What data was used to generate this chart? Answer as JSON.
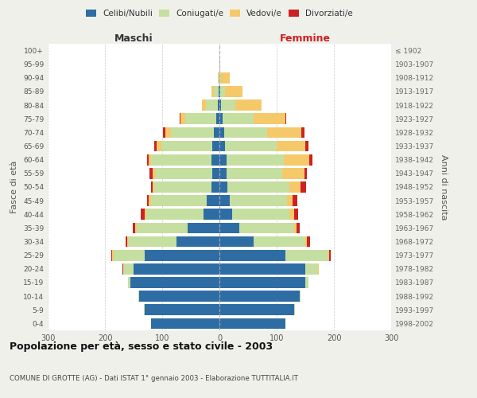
{
  "age_groups": [
    "0-4",
    "5-9",
    "10-14",
    "15-19",
    "20-24",
    "25-29",
    "30-34",
    "35-39",
    "40-44",
    "45-49",
    "50-54",
    "55-59",
    "60-64",
    "65-69",
    "70-74",
    "75-79",
    "80-84",
    "85-89",
    "90-94",
    "95-99",
    "100+"
  ],
  "birth_years": [
    "1998-2002",
    "1993-1997",
    "1988-1992",
    "1983-1987",
    "1978-1982",
    "1973-1977",
    "1968-1972",
    "1963-1967",
    "1958-1962",
    "1953-1957",
    "1948-1952",
    "1943-1947",
    "1938-1942",
    "1933-1937",
    "1928-1932",
    "1923-1927",
    "1918-1922",
    "1913-1917",
    "1908-1912",
    "1903-1907",
    "≤ 1902"
  ],
  "males": {
    "celibi": [
      120,
      130,
      140,
      155,
      150,
      130,
      75,
      55,
      28,
      22,
      14,
      12,
      14,
      12,
      10,
      5,
      3,
      2,
      0,
      0,
      0
    ],
    "coniugati": [
      0,
      2,
      2,
      5,
      18,
      55,
      85,
      90,
      100,
      98,
      100,
      100,
      105,
      90,
      75,
      55,
      20,
      8,
      2,
      0,
      0
    ],
    "vedovi": [
      0,
      0,
      0,
      0,
      0,
      2,
      1,
      2,
      2,
      3,
      3,
      5,
      5,
      8,
      10,
      8,
      8,
      4,
      1,
      0,
      0
    ],
    "divorziati": [
      0,
      0,
      0,
      0,
      1,
      2,
      3,
      5,
      8,
      3,
      3,
      5,
      3,
      4,
      4,
      1,
      0,
      0,
      0,
      0,
      0
    ]
  },
  "females": {
    "nubili": [
      115,
      130,
      140,
      150,
      150,
      115,
      60,
      35,
      22,
      18,
      14,
      12,
      12,
      10,
      8,
      5,
      3,
      2,
      0,
      0,
      0
    ],
    "coniugate": [
      0,
      2,
      2,
      5,
      22,
      75,
      90,
      95,
      100,
      100,
      108,
      98,
      100,
      90,
      75,
      55,
      25,
      8,
      3,
      0,
      0
    ],
    "vedove": [
      0,
      0,
      0,
      0,
      1,
      2,
      3,
      5,
      8,
      10,
      20,
      38,
      45,
      50,
      60,
      55,
      45,
      30,
      15,
      2,
      0
    ],
    "divorziate": [
      0,
      0,
      0,
      0,
      1,
      3,
      5,
      5,
      8,
      8,
      10,
      5,
      5,
      5,
      5,
      2,
      1,
      0,
      0,
      0,
      0
    ]
  },
  "colors": {
    "celibi": "#2E6DA4",
    "coniugati": "#C5DFA0",
    "vedovi": "#F5C96A",
    "divorziati": "#CC2222"
  },
  "xlim": 300,
  "title": "Popolazione per età, sesso e stato civile - 2003",
  "subtitle": "COMUNE DI GROTTE (AG) - Dati ISTAT 1° gennaio 2003 - Elaborazione TUTTITALIA.IT",
  "ylabel_left": "Fasce di età",
  "ylabel_right": "Anni di nascita",
  "xlabel_left": "Maschi",
  "xlabel_right": "Femmine",
  "bg_color": "#f0f0eb",
  "plot_bg_color": "#ffffff",
  "legend_labels": [
    "Celibi/Nubili",
    "Coniugati/e",
    "Vedovi/e",
    "Divorziati/e"
  ]
}
